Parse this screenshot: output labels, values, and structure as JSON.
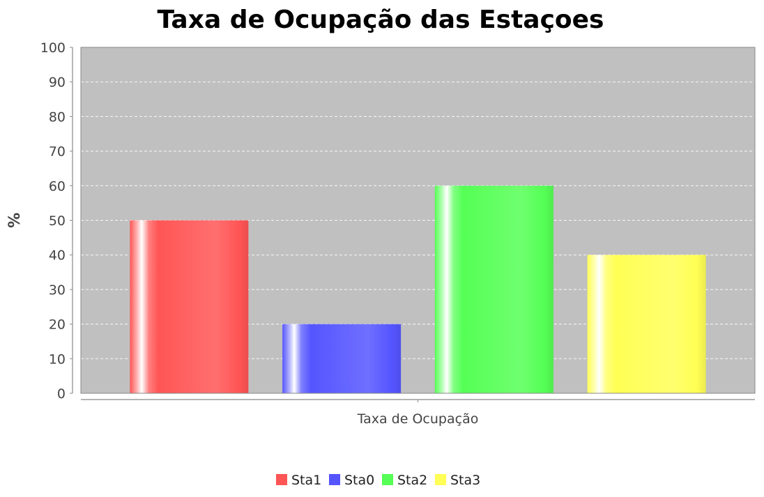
{
  "chart_data": {
    "type": "bar",
    "title": "Taxa de Ocupação das Estaçoes",
    "xlabel": "",
    "ylabel": "%",
    "categories": [
      "Taxa de Ocupação"
    ],
    "ylim": [
      0,
      100
    ],
    "yticks": [
      0,
      10,
      20,
      30,
      40,
      50,
      60,
      70,
      80,
      90,
      100
    ],
    "grid": true,
    "legend_position": "bottom",
    "series": [
      {
        "name": "Sta1",
        "values": [
          50
        ],
        "color": "#ff5555"
      },
      {
        "name": "Sta0",
        "values": [
          20
        ],
        "color": "#5555ff"
      },
      {
        "name": "Sta2",
        "values": [
          60
        ],
        "color": "#55ff55"
      },
      {
        "name": "Sta3",
        "values": [
          40
        ],
        "color": "#ffff55"
      }
    ]
  },
  "colors": {
    "plot_background": "#c0c0c0",
    "grid": "#ffffff",
    "axis": "#888888"
  }
}
